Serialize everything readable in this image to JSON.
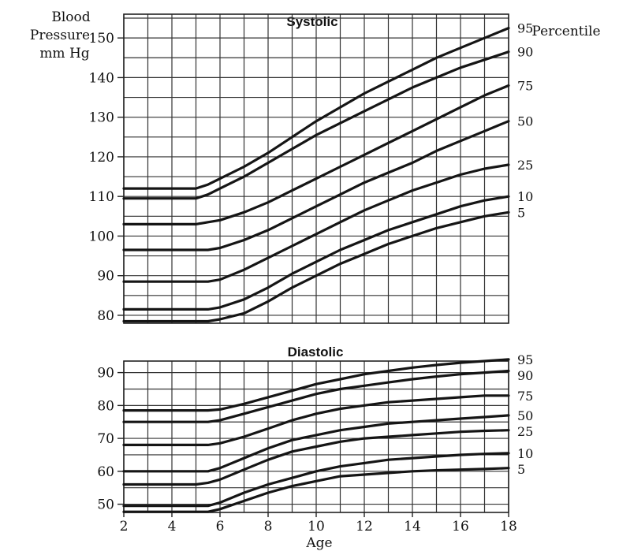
{
  "chart_data": [
    {
      "type": "line",
      "title": "Systolic",
      "ylabel": "Blood Pressure mm Hg",
      "ylabel_lines": [
        "Blood",
        "Pressure",
        "mm Hg"
      ],
      "right_label": "Percentile",
      "xlim": [
        2,
        18
      ],
      "ylim": [
        78,
        156
      ],
      "y_ticks": [
        80,
        90,
        100,
        110,
        120,
        130,
        140,
        150
      ],
      "x": [
        2,
        3,
        4,
        5,
        5.5,
        6,
        7,
        8,
        9,
        10,
        11,
        12,
        13,
        14,
        15,
        16,
        17,
        18
      ],
      "series": [
        {
          "name": "95",
          "values": [
            112,
            112,
            112,
            112,
            113,
            114.5,
            117.5,
            121,
            125,
            129,
            132.5,
            136,
            139,
            142,
            145,
            147.5,
            150,
            152.5
          ]
        },
        {
          "name": "90",
          "values": [
            109.5,
            109.5,
            109.5,
            109.5,
            110.5,
            112,
            115,
            118.5,
            122,
            125.5,
            128.5,
            131.5,
            134.5,
            137.5,
            140,
            142.5,
            144.5,
            146.5
          ]
        },
        {
          "name": "75",
          "values": [
            103,
            103,
            103,
            103,
            103.5,
            104,
            106,
            108.5,
            111.5,
            114.5,
            117.5,
            120.5,
            123.5,
            126.5,
            129.5,
            132.5,
            135.5,
            138
          ]
        },
        {
          "name": "50",
          "values": [
            96.5,
            96.5,
            96.5,
            96.5,
            96.5,
            97,
            99,
            101.5,
            104.5,
            107.5,
            110.5,
            113.5,
            116,
            118.5,
            121.5,
            124,
            126.5,
            129
          ]
        },
        {
          "name": "25",
          "values": [
            88.5,
            88.5,
            88.5,
            88.5,
            88.5,
            89,
            91.5,
            94.5,
            97.5,
            100.5,
            103.5,
            106.5,
            109,
            111.5,
            113.5,
            115.5,
            117,
            118
          ]
        },
        {
          "name": "10",
          "values": [
            81.5,
            81.5,
            81.5,
            81.5,
            81.5,
            82,
            84,
            87,
            90.5,
            93.5,
            96.5,
            99,
            101.5,
            103.5,
            105.5,
            107.5,
            109,
            110
          ]
        },
        {
          "name": "5",
          "values": [
            78.5,
            78.5,
            78.5,
            78.5,
            78.5,
            79,
            80.5,
            83.5,
            87,
            90,
            93,
            95.5,
            98,
            100,
            102,
            103.5,
            105,
            106
          ]
        }
      ]
    },
    {
      "type": "line",
      "title": "Diastolic",
      "xlabel": "Age",
      "xlim": [
        2,
        18
      ],
      "ylim": [
        47.5,
        93.5
      ],
      "x_ticks": [
        2,
        4,
        6,
        8,
        10,
        12,
        14,
        16,
        18
      ],
      "y_ticks": [
        50,
        60,
        70,
        80,
        90
      ],
      "x": [
        2,
        3,
        4,
        5,
        5.5,
        6,
        7,
        8,
        9,
        10,
        11,
        12,
        13,
        14,
        15,
        16,
        17,
        18
      ],
      "series": [
        {
          "name": "95",
          "values": [
            78.5,
            78.5,
            78.5,
            78.5,
            78.5,
            78.8,
            80.5,
            82.5,
            84.5,
            86.5,
            88,
            89.5,
            90.5,
            91.5,
            92.3,
            93,
            93.5,
            94
          ]
        },
        {
          "name": "90",
          "values": [
            75,
            75,
            75,
            75,
            75,
            75.5,
            77.5,
            79.5,
            81.5,
            83.5,
            85,
            86,
            87,
            88,
            88.8,
            89.5,
            90,
            90.5
          ]
        },
        {
          "name": "75",
          "values": [
            68,
            68,
            68,
            68,
            68,
            68.5,
            70.5,
            73,
            75.5,
            77.5,
            79,
            80,
            81,
            81.5,
            82,
            82.5,
            83,
            83
          ]
        },
        {
          "name": "50",
          "values": [
            60,
            60,
            60,
            60,
            60,
            61,
            64,
            67,
            69.5,
            71,
            72.5,
            73.5,
            74.5,
            75,
            75.5,
            76,
            76.5,
            77
          ]
        },
        {
          "name": "25",
          "values": [
            56,
            56,
            56,
            56,
            56.5,
            57.5,
            60.5,
            63.5,
            66,
            67.5,
            69,
            70,
            70.5,
            71,
            71.5,
            72,
            72.3,
            72.5
          ]
        },
        {
          "name": "10",
          "values": [
            49.5,
            49.5,
            49.5,
            49.5,
            49.5,
            50.5,
            53.5,
            56,
            58,
            60,
            61.5,
            62.5,
            63.5,
            64,
            64.5,
            65,
            65.3,
            65.5
          ]
        },
        {
          "name": "5",
          "values": [
            47.7,
            47.7,
            47.7,
            47.7,
            47.7,
            48.5,
            51,
            53.5,
            55.5,
            57,
            58.5,
            59,
            59.5,
            60,
            60.3,
            60.5,
            60.7,
            61
          ]
        }
      ]
    }
  ]
}
